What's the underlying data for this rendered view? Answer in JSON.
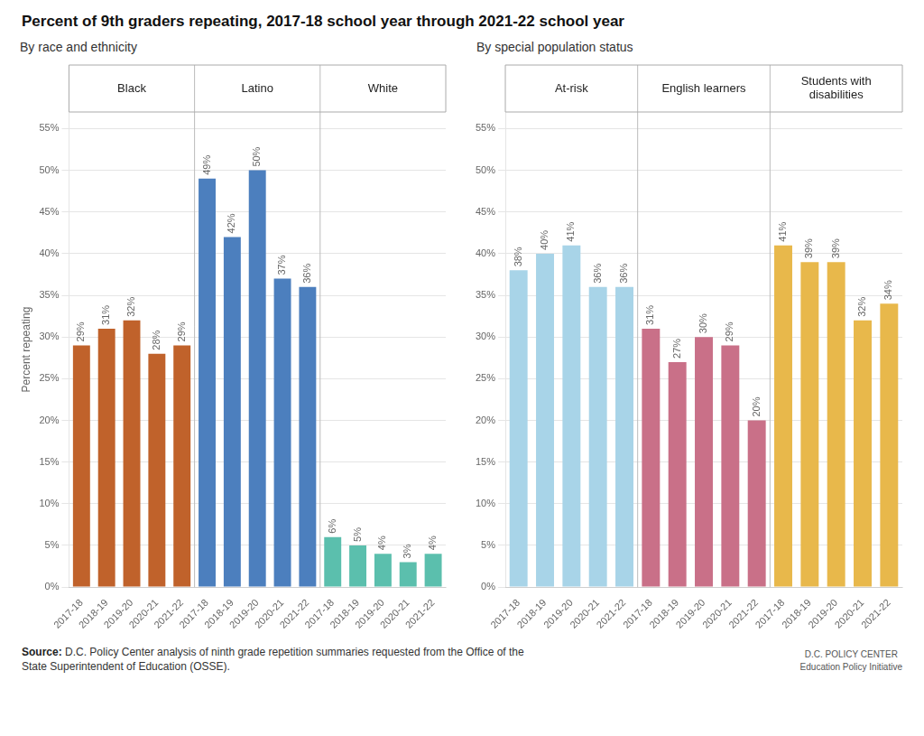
{
  "title": "Percent of 9th graders repeating, 2017-18 school year through 2021-22 school year",
  "annotations": [
    "Source:",
    "D.C. Policy Center analysis of ninth grade repetition summaries requested from the Office of the\nState Superintendent of Education (OSSE).",
    "D.C. POLICY CENTER",
    "Education Policy Initiative"
  ],
  "chart_data": [
    {
      "type": "bar",
      "subtitle": "By race and ethnicity",
      "ylabel": "Percent repeating",
      "categories": [
        "2017-18",
        "2018-19",
        "2019-20",
        "2020-21",
        "2021-22"
      ],
      "series": [
        {
          "name": "Black",
          "color": "#C0622B",
          "values": [
            29,
            31,
            32,
            28,
            29
          ],
          "value_labels": [
            "29%",
            "31%",
            "32%",
            "28%",
            "29%"
          ]
        },
        {
          "name": "Latino",
          "color": "#4C7FBE",
          "values": [
            49,
            42,
            50,
            37,
            36
          ],
          "value_labels": [
            "49%",
            "42%",
            "50%",
            "37%",
            "36%"
          ]
        },
        {
          "name": "White",
          "color": "#5BBFAD",
          "values": [
            6,
            5,
            4,
            3,
            4
          ],
          "value_labels": [
            "6%",
            "5%",
            "4%",
            "3%",
            "4%"
          ]
        }
      ],
      "ylim": [
        0,
        57
      ],
      "yticks": [
        {
          "value": 0,
          "label": "0%"
        },
        {
          "value": 5,
          "label": "5%"
        },
        {
          "value": 10,
          "label": "10%"
        },
        {
          "value": 15,
          "label": "15%"
        },
        {
          "value": 20,
          "label": "20%"
        },
        {
          "value": 25,
          "label": "25%"
        },
        {
          "value": 30,
          "label": "30%"
        },
        {
          "value": 35,
          "label": "35%"
        },
        {
          "value": 40,
          "label": "40%"
        },
        {
          "value": 45,
          "label": "45%"
        },
        {
          "value": 50,
          "label": "50%"
        },
        {
          "value": 55,
          "label": "55%"
        }
      ],
      "grid": true,
      "data_labels": true
    },
    {
      "type": "bar",
      "subtitle": "By special population status",
      "categories": [
        "2017-18",
        "2018-19",
        "2019-20",
        "2020-21",
        "2021-22"
      ],
      "series": [
        {
          "name": "At-risk",
          "color": "#A8D4E8",
          "values": [
            38,
            40,
            41,
            36,
            36
          ],
          "value_labels": [
            "38%",
            "40%",
            "41%",
            "36%",
            "36%"
          ]
        },
        {
          "name": "English learners",
          "color": "#C97088",
          "values": [
            31,
            27,
            30,
            29,
            20
          ],
          "value_labels": [
            "31%",
            "27%",
            "30%",
            "29%",
            "20%"
          ]
        },
        {
          "name": "Students with\ndisabilities",
          "color": "#E8B84B",
          "values": [
            41,
            39,
            39,
            32,
            34
          ],
          "value_labels": [
            "41%",
            "39%",
            "39%",
            "32%",
            "34%"
          ]
        }
      ],
      "ylim": [
        0,
        57
      ],
      "yticks": [
        {
          "value": 0,
          "label": "0%"
        },
        {
          "value": 5,
          "label": "5%"
        },
        {
          "value": 10,
          "label": "10%"
        },
        {
          "value": 15,
          "label": "15%"
        },
        {
          "value": 20,
          "label": "20%"
        },
        {
          "value": 25,
          "label": "25%"
        },
        {
          "value": 30,
          "label": "30%"
        },
        {
          "value": 35,
          "label": "35%"
        },
        {
          "value": 40,
          "label": "40%"
        },
        {
          "value": 45,
          "label": "45%"
        },
        {
          "value": 50,
          "label": "50%"
        },
        {
          "value": 55,
          "label": "55%"
        }
      ],
      "grid": true,
      "data_labels": true
    }
  ]
}
